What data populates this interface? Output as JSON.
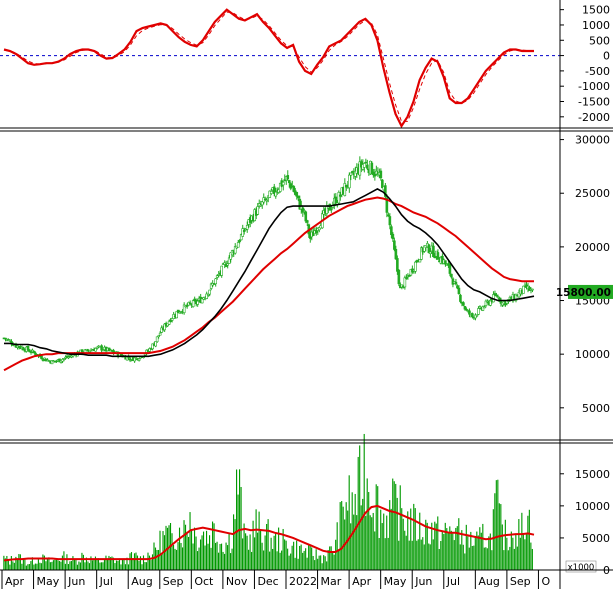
{
  "chart_data": [
    {
      "type": "line",
      "panel": "oscillator",
      "yticks": [
        1500,
        1000,
        500,
        0,
        -500,
        -1000,
        -1500,
        -2000
      ],
      "ylim": [
        -2300,
        1750
      ],
      "reference_line": 0,
      "colors": {
        "main": "#e00000",
        "signal": "#e00000",
        "zero": "#0000cc"
      },
      "series": [
        {
          "style": "solid",
          "values": [
            200,
            150,
            50,
            -100,
            -250,
            -300,
            -280,
            -250,
            -250,
            -200,
            -100,
            50,
            150,
            200,
            200,
            150,
            0,
            -100,
            -80,
            50,
            200,
            450,
            800,
            900,
            950,
            1000,
            1050,
            1000,
            800,
            600,
            450,
            350,
            300,
            500,
            800,
            1100,
            1300,
            1500,
            1350,
            1200,
            1150,
            1250,
            1350,
            1100,
            900,
            650,
            400,
            250,
            350,
            -200,
            -500,
            -600,
            -300,
            -50,
            300,
            400,
            500,
            700,
            900,
            1100,
            1200,
            1000,
            500,
            -400,
            -1200,
            -1900,
            -2300,
            -2000,
            -1500,
            -800,
            -400,
            -100,
            -200,
            -700,
            -1400,
            -1550,
            -1550,
            -1400,
            -1100,
            -800,
            -500,
            -300,
            -100,
            100,
            200,
            200,
            150,
            150,
            150
          ]
        },
        {
          "style": "dashed",
          "values": [
            180,
            160,
            80,
            -50,
            -180,
            -260,
            -280,
            -265,
            -250,
            -220,
            -140,
            -20,
            100,
            170,
            195,
            175,
            60,
            -60,
            -90,
            0,
            130,
            350,
            650,
            820,
            900,
            960,
            1010,
            1010,
            880,
            700,
            540,
            420,
            340,
            420,
            680,
            980,
            1200,
            1420,
            1400,
            1270,
            1180,
            1210,
            1300,
            1180,
            980,
            740,
            500,
            320,
            300,
            -50,
            -360,
            -540,
            -400,
            -150,
            170,
            350,
            460,
            620,
            820,
            1020,
            1150,
            1060,
            680,
            -100,
            -900,
            -1600,
            -2150,
            -2150,
            -1700,
            -1100,
            -600,
            -250,
            -150,
            -550,
            -1200,
            -1480,
            -1560,
            -1460,
            -1220,
            -920,
            -620,
            -380,
            -170,
            30,
            150,
            200,
            180,
            160,
            150
          ]
        }
      ]
    },
    {
      "type": "candlestick",
      "panel": "price",
      "yticks": [
        30000,
        25000,
        20000,
        15000,
        10000,
        5000
      ],
      "ylim": [
        2000,
        30800
      ],
      "last_price_label": "15800.00",
      "colors": {
        "candles": "#22aa22",
        "ma_short": "#000000",
        "ma_long": "#e00000",
        "price_tag_bg": "#22aa22"
      },
      "close_series": [
        11500,
        11200,
        10800,
        10600,
        10400,
        10100,
        9800,
        9500,
        9300,
        9400,
        9600,
        9800,
        10100,
        10200,
        10300,
        10500,
        10600,
        10400,
        10200,
        10000,
        9800,
        9600,
        9600,
        9900,
        10300,
        11000,
        12000,
        12800,
        13500,
        14000,
        14300,
        14600,
        14800,
        15200,
        15900,
        16700,
        17600,
        18500,
        19500,
        20500,
        21500,
        22500,
        23300,
        24000,
        24500,
        25200,
        25800,
        26300,
        25600,
        24200,
        23000,
        20800,
        21800,
        22700,
        23500,
        24200,
        24800,
        25800,
        26500,
        27300,
        27800,
        27400,
        26800,
        26000,
        22800,
        19500,
        16000,
        17000,
        18000,
        19000,
        20000,
        19800,
        19200,
        18800,
        18000,
        16500,
        15200,
        14000,
        13500,
        14000,
        14500,
        15000,
        15500,
        14800,
        15000,
        15300,
        15800,
        16200,
        15800
      ],
      "ma_short_series": [
        11000,
        11000,
        10900,
        10900,
        10900,
        10800,
        10600,
        10500,
        10300,
        10200,
        10100,
        10000,
        10000,
        10000,
        9900,
        9900,
        9900,
        9900,
        9800,
        9800,
        9800,
        9800,
        9800,
        9800,
        9800,
        9900,
        10000,
        10200,
        10400,
        10700,
        11000,
        11400,
        11800,
        12300,
        12900,
        13500,
        14200,
        15000,
        15900,
        16800,
        17700,
        18700,
        19700,
        20700,
        21700,
        22500,
        23200,
        23700,
        23800,
        23800,
        23800,
        23800,
        23800,
        23800,
        23800,
        23900,
        24000,
        24100,
        24200,
        24500,
        24800,
        25100,
        25400,
        25100,
        24500,
        23800,
        23000,
        22400,
        22000,
        21700,
        21300,
        20800,
        20200,
        19400,
        18600,
        17800,
        17000,
        16400,
        16000,
        15800,
        15500,
        15200,
        15000,
        15000,
        15000,
        15100,
        15200,
        15300,
        15400
      ],
      "ma_long_series": [
        8500,
        8800,
        9100,
        9400,
        9600,
        9800,
        9900,
        10000,
        10000,
        10100,
        10100,
        10100,
        10100,
        10100,
        10100,
        10100,
        10100,
        10100,
        10100,
        10100,
        10100,
        10100,
        10100,
        10100,
        10100,
        10200,
        10300,
        10500,
        10700,
        11000,
        11300,
        11700,
        12100,
        12500,
        13000,
        13400,
        13900,
        14400,
        14900,
        15500,
        16100,
        16700,
        17300,
        17900,
        18400,
        18900,
        19400,
        19800,
        20300,
        20800,
        21300,
        21700,
        22100,
        22500,
        22900,
        23200,
        23500,
        23800,
        24000,
        24200,
        24400,
        24500,
        24600,
        24500,
        24300,
        24000,
        23800,
        23500,
        23200,
        23000,
        22800,
        22500,
        22200,
        21800,
        21400,
        21000,
        20500,
        20000,
        19500,
        19000,
        18500,
        18000,
        17600,
        17200,
        17000,
        16900,
        16800,
        16800,
        16800
      ]
    },
    {
      "type": "bar",
      "panel": "volume",
      "unit_label": "x1000",
      "yticks": [
        15000,
        10000,
        5000,
        0
      ],
      "ylim": [
        0,
        19800
      ],
      "colors": {
        "bars": "#009900",
        "ma": "#e00000"
      },
      "values": [
        2000,
        1500,
        2500,
        1800,
        1200,
        1600,
        2100,
        1700,
        1400,
        1900,
        2200,
        1800,
        1600,
        2400,
        2000,
        1700,
        1500,
        1800,
        1900,
        1600,
        1400,
        2100,
        2300,
        1800,
        2600,
        3200,
        4800,
        6200,
        5400,
        7000,
        6800,
        9500,
        5600,
        6400,
        5800,
        7200,
        5000,
        4600,
        6000,
        15800,
        5500,
        5200,
        7600,
        6300,
        5900,
        4800,
        5400,
        4200,
        4000,
        3600,
        3300,
        2900,
        2600,
        2200,
        2800,
        3600,
        8000,
        12500,
        10500,
        13200,
        18500,
        14000,
        12000,
        9000,
        9400,
        11000,
        9800,
        8600,
        8000,
        7400,
        6900,
        7300,
        6500,
        6000,
        6400,
        7200,
        5800,
        5400,
        5000,
        4700,
        6000,
        5100,
        12000,
        6300,
        5600,
        7200,
        6000,
        10200,
        6400
      ],
      "ma_values": [
        1500,
        1600,
        1700,
        1700,
        1800,
        1800,
        1800,
        1800,
        1800,
        1700,
        1700,
        1700,
        1700,
        1700,
        1700,
        1700,
        1700,
        1700,
        1700,
        1700,
        1700,
        1700,
        1700,
        1700,
        1700,
        1900,
        2400,
        3200,
        4000,
        4800,
        5500,
        6200,
        6400,
        6600,
        6400,
        6200,
        6000,
        5800,
        5600,
        6200,
        6400,
        6200,
        6300,
        6200,
        6100,
        5800,
        5600,
        5300,
        5000,
        4600,
        4200,
        3800,
        3400,
        3000,
        2800,
        2800,
        3300,
        4500,
        5900,
        7400,
        8900,
        9800,
        10000,
        9600,
        9200,
        9000,
        8600,
        8200,
        7800,
        7300,
        6800,
        6500,
        6200,
        6000,
        5800,
        5800,
        5600,
        5400,
        5200,
        5000,
        4800,
        4900,
        5200,
        5400,
        5500,
        5600,
        5600,
        5700,
        5500
      ]
    },
    {
      "type": "axis",
      "panel": "time",
      "labels": [
        "Apr",
        "May",
        "Jun",
        "Jul",
        "Aug",
        "Sep",
        "Oct",
        "Nov",
        "Dec",
        "2022",
        "Mar",
        "Apr",
        "May",
        "Jun",
        "Jul",
        "Aug",
        "Sep",
        "O"
      ]
    }
  ]
}
